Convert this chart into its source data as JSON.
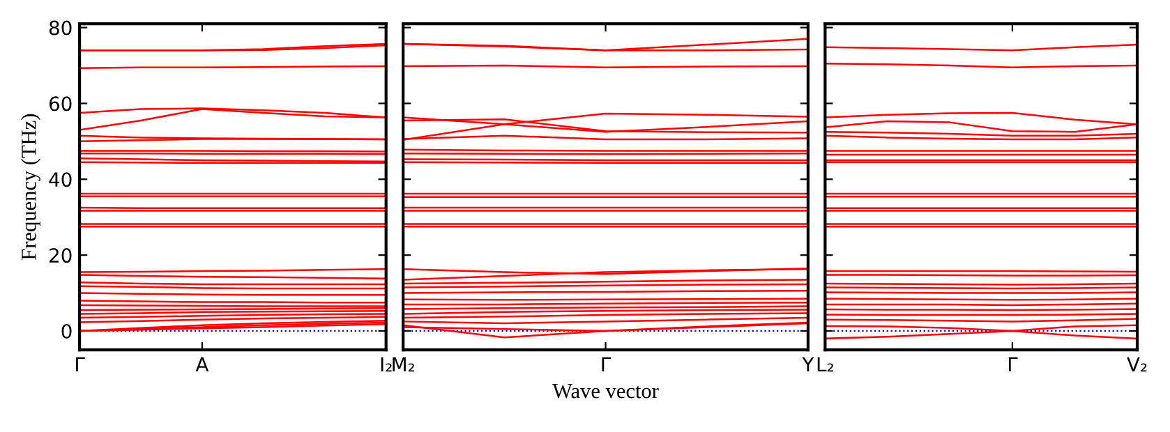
{
  "chart_data": [
    {
      "type": "line",
      "ylabel": "Frequency (THz)",
      "categories": [
        "Γ",
        null,
        "A",
        null,
        null,
        "I₂"
      ],
      "ylim": [
        -5,
        81
      ],
      "yticks": [
        0,
        20,
        40,
        60,
        80
      ],
      "grid": false,
      "marker": "none",
      "line_style": "solid",
      "ref_lines": [
        {
          "axis": "y",
          "value": 0,
          "color": "#0000ff",
          "line_style": "dotted"
        }
      ],
      "series": [
        {
          "color": "#ff0000",
          "values": [
            74,
            74,
            74,
            74.3,
            75.1,
            75.7
          ]
        },
        {
          "color": "#ff0000",
          "values": [
            74,
            74,
            74,
            74.1,
            74.6,
            75.3
          ]
        },
        {
          "color": "#ff0000",
          "values": [
            69.3,
            69.5,
            69.5,
            69.6,
            69.7,
            69.8
          ]
        },
        {
          "color": "#ff0000",
          "values": [
            57.5,
            58.5,
            58.7,
            58.2,
            57.5,
            56.3
          ]
        },
        {
          "color": "#ff0000",
          "values": [
            53,
            55.5,
            58.5,
            57.5,
            56.6,
            56.3
          ]
        },
        {
          "color": "#ff0000",
          "values": [
            51.5,
            51,
            50.8,
            50.7,
            50.6,
            50.5
          ]
        },
        {
          "color": "#ff0000",
          "values": [
            50,
            50.3,
            50.6,
            50.6,
            50.6,
            50.5
          ]
        },
        {
          "color": "#ff0000",
          "values": [
            47.5,
            47.5,
            47.5,
            47.4,
            47.4,
            47.3
          ]
        },
        {
          "color": "#ff0000",
          "values": [
            46.8,
            46.8,
            46.7,
            46.7,
            46.7,
            46.6
          ]
        },
        {
          "color": "#ff0000",
          "values": [
            45.5,
            45.3,
            45,
            44.9,
            44.8,
            44.7
          ]
        },
        {
          "color": "#ff0000",
          "values": [
            44.5,
            44.4,
            44.3,
            44.3,
            44.3,
            44.3
          ]
        },
        {
          "color": "#ff0000",
          "values": [
            36.2,
            36.2,
            36.2,
            36.2,
            36.2,
            36.2
          ]
        },
        {
          "color": "#ff0000",
          "values": [
            35.5,
            35.5,
            35.5,
            35.5,
            35.5,
            35.5
          ]
        },
        {
          "color": "#ff0000",
          "values": [
            32.5,
            32.4,
            32.4,
            32.4,
            32.4,
            32.4
          ]
        },
        {
          "color": "#ff0000",
          "values": [
            31.7,
            31.7,
            31.7,
            31.7,
            31.7,
            31.7
          ]
        },
        {
          "color": "#ff0000",
          "values": [
            28.2,
            28.2,
            28.2,
            28.2,
            28.2,
            28.2
          ]
        },
        {
          "color": "#ff0000",
          "values": [
            27.5,
            27.5,
            27.5,
            27.5,
            27.5,
            27.5
          ]
        },
        {
          "color": "#ff0000",
          "values": [
            15.5,
            15.6,
            15.8,
            15.9,
            16.1,
            16.3
          ]
        },
        {
          "color": "#ff0000",
          "values": [
            14.8,
            14.5,
            14.3,
            14.2,
            14,
            13.8
          ]
        },
        {
          "color": "#ff0000",
          "values": [
            12.8,
            12.5,
            12.3,
            12.3,
            12.3,
            12.3
          ]
        },
        {
          "color": "#ff0000",
          "values": [
            11.8,
            11.6,
            11.3,
            11.2,
            11.2,
            11.2
          ]
        },
        {
          "color": "#ff0000",
          "values": [
            10,
            9.8,
            9.6,
            9.5,
            9.5,
            9.5
          ]
        },
        {
          "color": "#ff0000",
          "values": [
            8,
            7.8,
            7.6,
            7.6,
            7.5,
            7.5
          ]
        },
        {
          "color": "#ff0000",
          "values": [
            6.8,
            6.7,
            6.6,
            6.5,
            6.5,
            6.5
          ]
        },
        {
          "color": "#ff0000",
          "values": [
            5.5,
            5.6,
            5.7,
            5.8,
            5.9,
            6
          ]
        },
        {
          "color": "#ff0000",
          "values": [
            4.5,
            4.7,
            5,
            5.1,
            5.2,
            5.3
          ]
        },
        {
          "color": "#ff0000",
          "values": [
            3.5,
            3.7,
            4,
            4.2,
            4.4,
            4.5
          ]
        },
        {
          "color": "#ff0000",
          "values": [
            2.3,
            2.6,
            3,
            3.3,
            3.5,
            3.7
          ]
        },
        {
          "color": "#ff0000",
          "values": [
            0,
            0.8,
            1.5,
            2,
            2.4,
            2.7
          ]
        },
        {
          "color": "#ff0000",
          "values": [
            0,
            0.5,
            1,
            1.5,
            1.9,
            2.2
          ]
        },
        {
          "color": "#ff0000",
          "values": [
            0,
            0.3,
            0.7,
            1,
            1.4,
            1.8
          ]
        }
      ]
    },
    {
      "type": "line",
      "xlabel": "Wave vector",
      "categories": [
        "M₂",
        null,
        "Γ",
        null,
        "Y"
      ],
      "ylim": [
        -5,
        81
      ],
      "yticks": [
        0,
        20,
        40,
        60,
        80
      ],
      "tick_labels": "x",
      "grid": false,
      "marker": "none",
      "line_style": "solid",
      "ref_lines": [
        {
          "axis": "y",
          "value": 0,
          "color": "#0000ff",
          "line_style": "dotted"
        }
      ],
      "series": [
        {
          "color": "#ff0000",
          "values": [
            75.7,
            75.2,
            74,
            75.5,
            77
          ]
        },
        {
          "color": "#ff0000",
          "values": [
            75.7,
            75,
            74,
            74,
            74.2
          ]
        },
        {
          "color": "#ff0000",
          "values": [
            69.8,
            70,
            69.5,
            69.7,
            69.8
          ]
        },
        {
          "color": "#ff0000",
          "values": [
            56.3,
            54.5,
            52.5,
            53.8,
            55.3
          ]
        },
        {
          "color": "#ff0000",
          "values": [
            50.4,
            54.5,
            57.3,
            57,
            56.5
          ]
        },
        {
          "color": "#ff0000",
          "values": [
            55.5,
            55.8,
            52.7,
            52.4,
            52.3
          ]
        },
        {
          "color": "#ff0000",
          "values": [
            50.6,
            51.5,
            50.5,
            50.5,
            50.8
          ]
        },
        {
          "color": "#ff0000",
          "values": [
            47.8,
            47.6,
            47.5,
            47.5,
            47.5
          ]
        },
        {
          "color": "#ff0000",
          "values": [
            46.8,
            46.7,
            46.6,
            46.7,
            46.8
          ]
        },
        {
          "color": "#ff0000",
          "values": [
            45.3,
            45.2,
            45,
            45,
            45
          ]
        },
        {
          "color": "#ff0000",
          "values": [
            44.5,
            44.4,
            44.3,
            44.3,
            44.3
          ]
        },
        {
          "color": "#ff0000",
          "values": [
            36.2,
            36.2,
            36.2,
            36.2,
            36.2
          ]
        },
        {
          "color": "#ff0000",
          "values": [
            35.3,
            35.3,
            35.3,
            35.3,
            35.3
          ]
        },
        {
          "color": "#ff0000",
          "values": [
            32.5,
            32.5,
            32.5,
            32.5,
            32.5
          ]
        },
        {
          "color": "#ff0000",
          "values": [
            31.7,
            31.7,
            31.7,
            31.7,
            31.7
          ]
        },
        {
          "color": "#ff0000",
          "values": [
            28.2,
            28.2,
            28.2,
            28.2,
            28.2
          ]
        },
        {
          "color": "#ff0000",
          "values": [
            27.5,
            27.5,
            27.5,
            27.5,
            27.5
          ]
        },
        {
          "color": "#ff0000",
          "values": [
            16.3,
            15.5,
            15,
            15.8,
            16.5
          ]
        },
        {
          "color": "#ff0000",
          "values": [
            13.5,
            14.5,
            15.5,
            16,
            16.3
          ]
        },
        {
          "color": "#ff0000",
          "values": [
            12.5,
            12.7,
            13,
            13.3,
            13.5
          ]
        },
        {
          "color": "#ff0000",
          "values": [
            11.5,
            11.7,
            12,
            12.2,
            12.3
          ]
        },
        {
          "color": "#ff0000",
          "values": [
            10,
            10.2,
            10.3,
            10.5,
            10.6
          ]
        },
        {
          "color": "#ff0000",
          "values": [
            8.3,
            8.2,
            8.3,
            8.4,
            8.5
          ]
        },
        {
          "color": "#ff0000",
          "values": [
            7,
            7,
            7.2,
            7.4,
            7.5
          ]
        },
        {
          "color": "#ff0000",
          "values": [
            5.8,
            6,
            6.2,
            6.3,
            6.5
          ]
        },
        {
          "color": "#ff0000",
          "values": [
            4.5,
            5,
            5.3,
            5.5,
            5.6
          ]
        },
        {
          "color": "#ff0000",
          "values": [
            3.5,
            3.8,
            4.2,
            4.5,
            4.7
          ]
        },
        {
          "color": "#ff0000",
          "values": [
            2.5,
            2,
            2.5,
            3,
            3.5
          ]
        },
        {
          "color": "#ff0000",
          "values": [
            1.5,
            -1.7,
            0,
            1,
            2
          ]
        },
        {
          "color": "#ff0000",
          "values": [
            1,
            0.5,
            0,
            1.2,
            2.2
          ]
        }
      ]
    },
    {
      "type": "line",
      "categories": [
        "L₂",
        null,
        null,
        "Γ",
        null,
        "V₂"
      ],
      "ylim": [
        -5,
        81
      ],
      "yticks": [
        0,
        20,
        40,
        60,
        80
      ],
      "tick_labels": "x",
      "grid": false,
      "marker": "none",
      "line_style": "solid",
      "ref_lines": [
        {
          "axis": "y",
          "value": 0,
          "color": "#0000ff",
          "line_style": "dotted"
        }
      ],
      "series": [
        {
          "color": "#ff0000",
          "values": [
            74.8,
            74.6,
            74.3,
            74,
            74.8,
            75.5
          ]
        },
        {
          "color": "#ff0000",
          "values": [
            70.5,
            70.3,
            70,
            69.5,
            69.8,
            70
          ]
        },
        {
          "color": "#ff0000",
          "values": [
            56.3,
            57,
            57.4,
            57.5,
            55.7,
            54.5
          ]
        },
        {
          "color": "#ff0000",
          "values": [
            53.7,
            55.3,
            55,
            52.7,
            52.5,
            54.5
          ]
        },
        {
          "color": "#ff0000",
          "values": [
            52.5,
            52.3,
            52,
            51.5,
            51.5,
            52
          ]
        },
        {
          "color": "#ff0000",
          "values": [
            51.5,
            51,
            50.7,
            50.5,
            50.5,
            51
          ]
        },
        {
          "color": "#ff0000",
          "values": [
            47.5,
            47.5,
            47.5,
            47.5,
            47.5,
            47.5
          ]
        },
        {
          "color": "#ff0000",
          "values": [
            46.5,
            46.5,
            46.5,
            46.5,
            46.5,
            46.5
          ]
        },
        {
          "color": "#ff0000",
          "values": [
            45,
            45,
            45,
            45,
            45,
            45
          ]
        },
        {
          "color": "#ff0000",
          "values": [
            44.5,
            44.5,
            44.5,
            44.5,
            44.5,
            44.5
          ]
        },
        {
          "color": "#ff0000",
          "values": [
            36.2,
            36.2,
            36.2,
            36.2,
            36.2,
            36.2
          ]
        },
        {
          "color": "#ff0000",
          "values": [
            35.4,
            35.4,
            35.4,
            35.4,
            35.4,
            35.4
          ]
        },
        {
          "color": "#ff0000",
          "values": [
            32.4,
            32.4,
            32.4,
            32.4,
            32.4,
            32.4
          ]
        },
        {
          "color": "#ff0000",
          "values": [
            31.7,
            31.7,
            31.7,
            31.7,
            31.7,
            31.7
          ]
        },
        {
          "color": "#ff0000",
          "values": [
            28.2,
            28.2,
            28.2,
            28.2,
            28.2,
            28.2
          ]
        },
        {
          "color": "#ff0000",
          "values": [
            27.5,
            27.5,
            27.5,
            27.5,
            27.5,
            27.5
          ]
        },
        {
          "color": "#ff0000",
          "values": [
            15.8,
            15.8,
            15.8,
            15.8,
            15.7,
            15.6
          ]
        },
        {
          "color": "#ff0000",
          "values": [
            14.8,
            14.8,
            14.7,
            14.6,
            14.6,
            14.7
          ]
        },
        {
          "color": "#ff0000",
          "values": [
            12.5,
            12.4,
            12.3,
            12.2,
            12.3,
            12.5
          ]
        },
        {
          "color": "#ff0000",
          "values": [
            11.5,
            11.4,
            11.3,
            11.2,
            11.3,
            11.5
          ]
        },
        {
          "color": "#ff0000",
          "values": [
            10.2,
            10.1,
            10,
            10,
            10,
            10.2
          ]
        },
        {
          "color": "#ff0000",
          "values": [
            8.5,
            8.4,
            8.3,
            8.2,
            8.3,
            8.5
          ]
        },
        {
          "color": "#ff0000",
          "values": [
            7,
            7,
            7,
            6.8,
            7,
            7.2
          ]
        },
        {
          "color": "#ff0000",
          "values": [
            5.7,
            5.6,
            5.6,
            5.5,
            5.6,
            5.8
          ]
        },
        {
          "color": "#ff0000",
          "values": [
            4.3,
            4.2,
            4.2,
            4.2,
            4.3,
            4.5
          ]
        },
        {
          "color": "#ff0000",
          "values": [
            3,
            2.9,
            2.7,
            2.5,
            2.8,
            3.2
          ]
        },
        {
          "color": "#ff0000",
          "values": [
            1.3,
            1.2,
            0.8,
            0,
            1.2,
            1.5
          ]
        },
        {
          "color": "#ff0000",
          "values": [
            -2,
            -1.5,
            -0.8,
            0,
            -1.2,
            -2
          ]
        }
      ]
    }
  ]
}
